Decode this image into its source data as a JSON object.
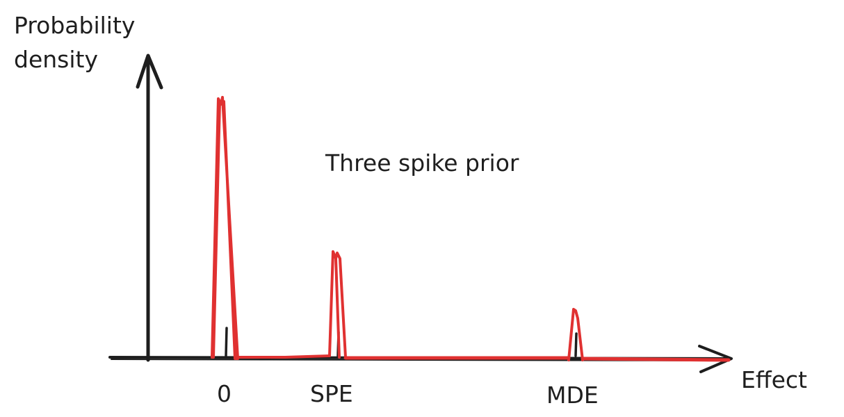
{
  "ylabel_line1": "Probability",
  "ylabel_line2": "density",
  "xlabel": "Effect",
  "annotation": "Three spike prior",
  "ticks": {
    "zero": "0",
    "spe": "SPE",
    "mde": "MDE"
  },
  "colors": {
    "axis": "#1e1e1e",
    "prior": "#e03131"
  }
}
